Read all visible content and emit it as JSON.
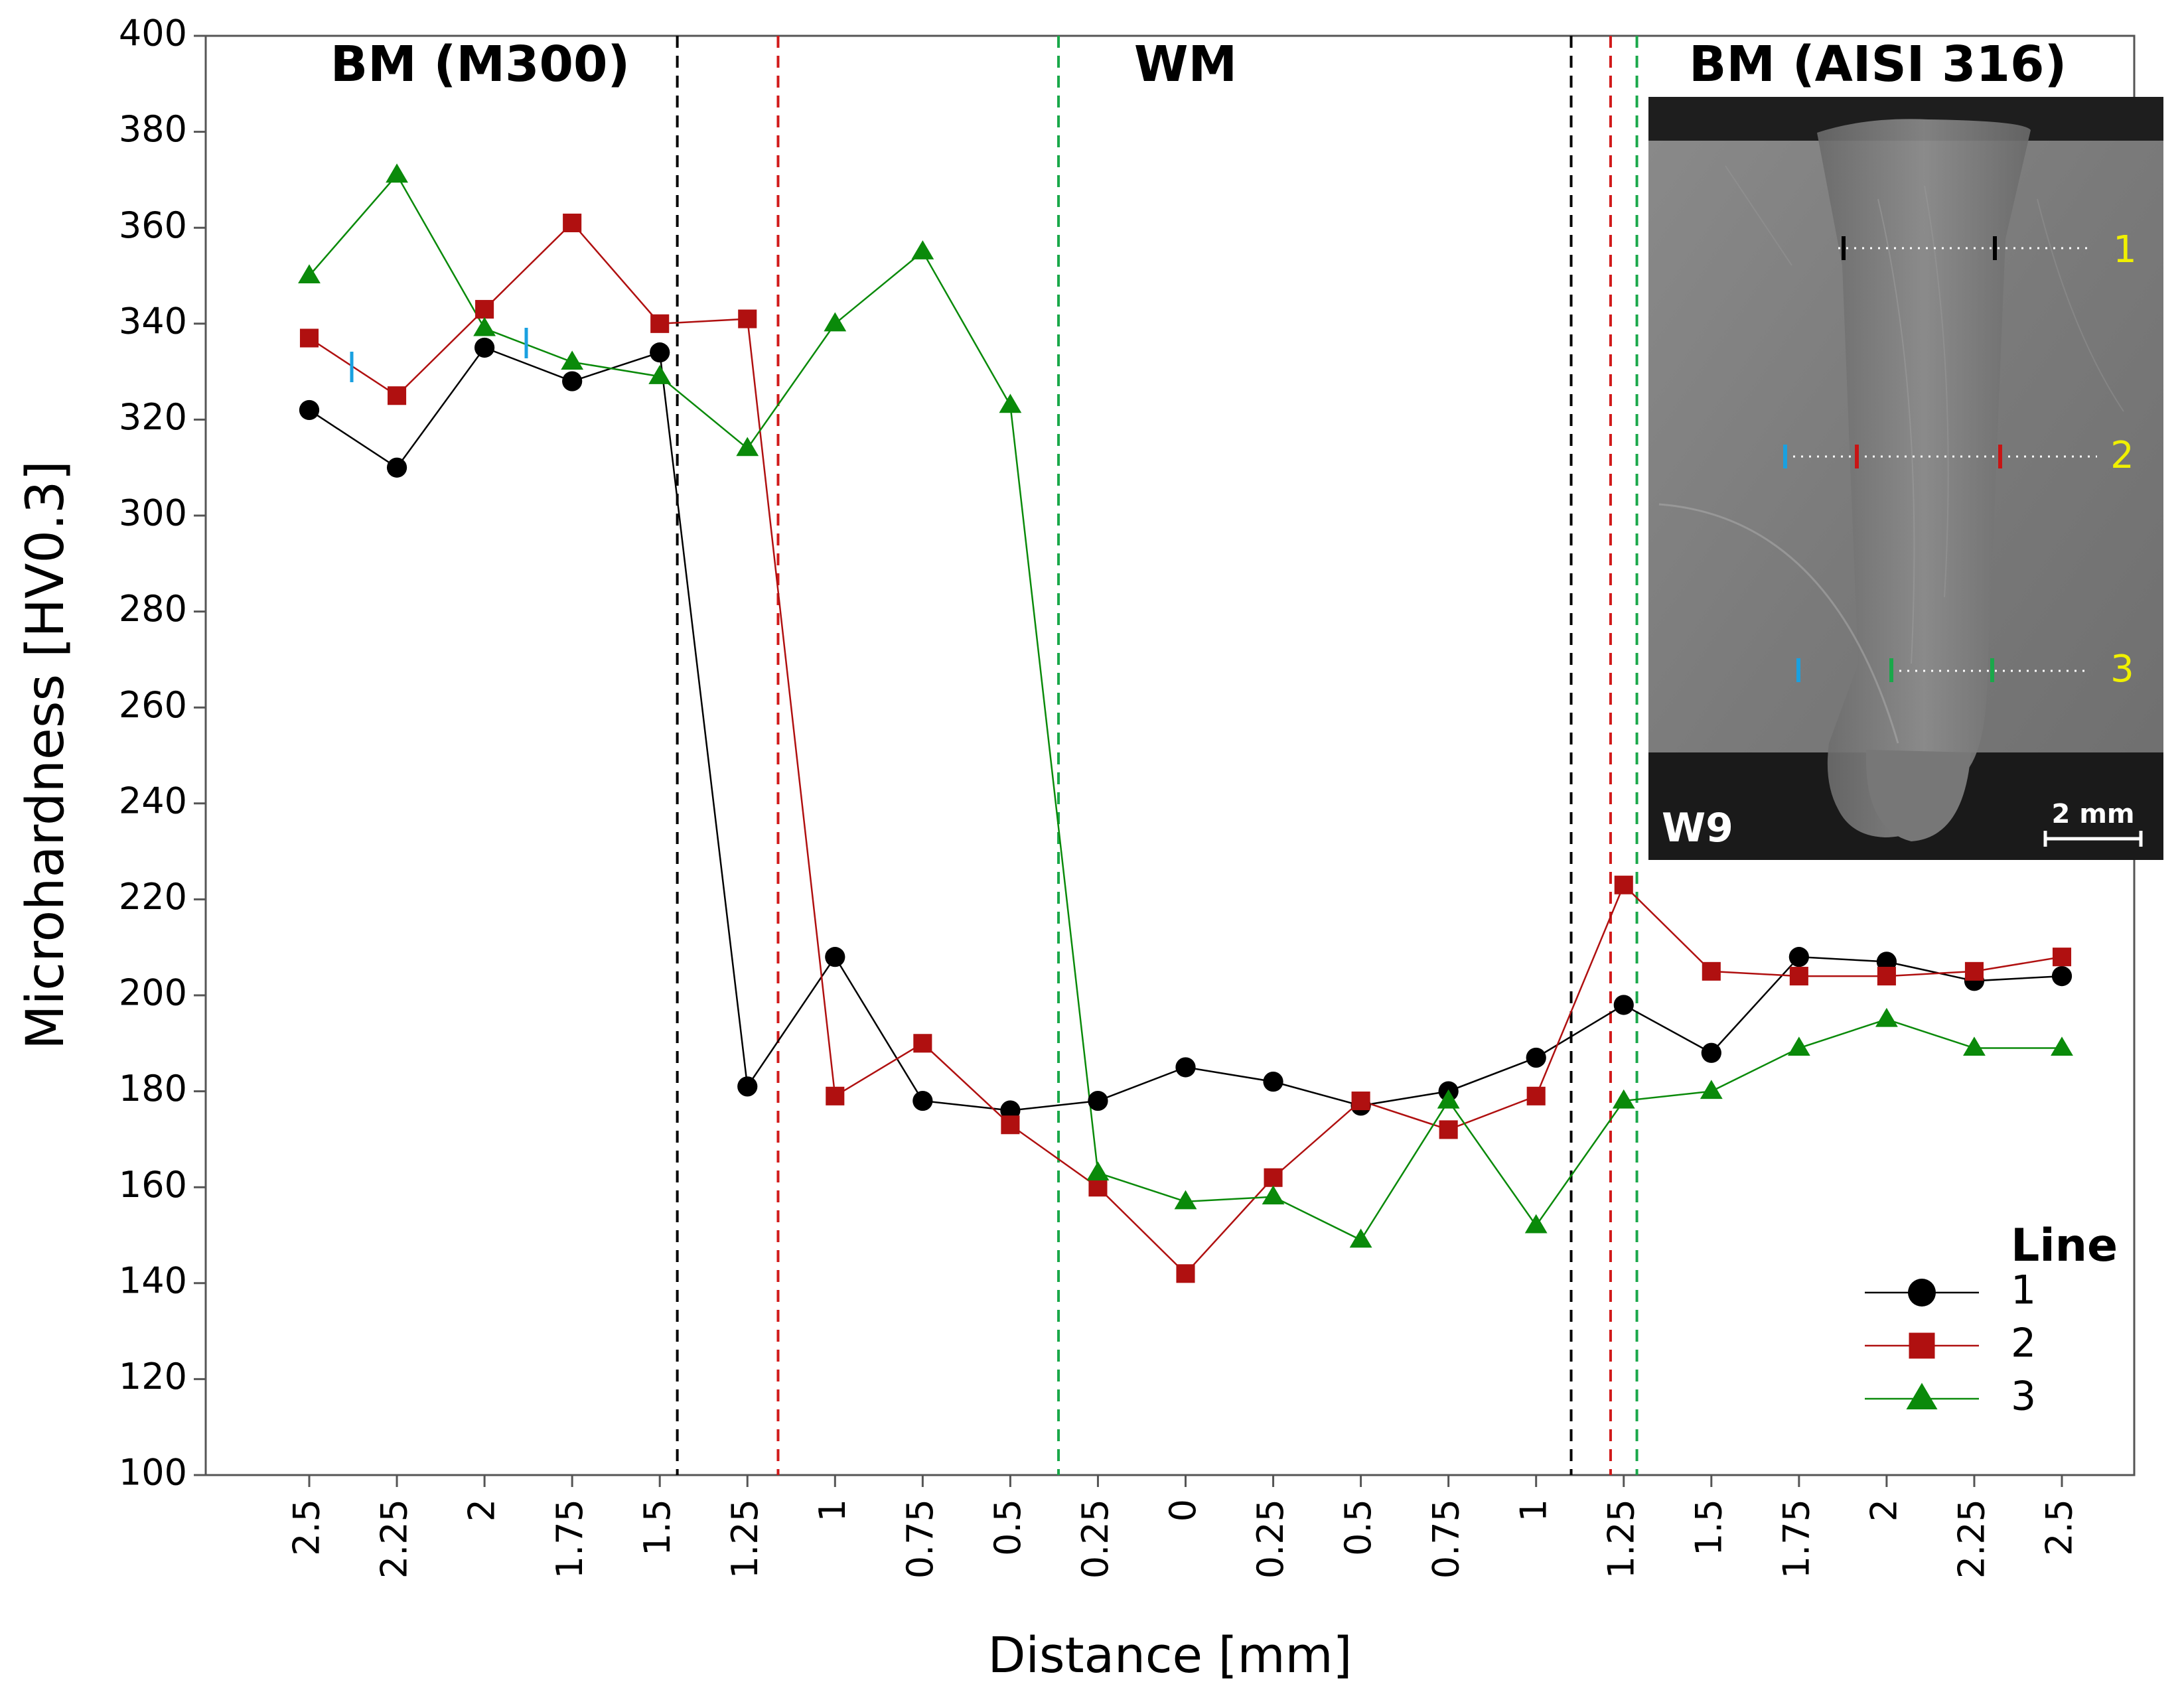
{
  "chart_data": {
    "type": "line",
    "ylabel": "Microhardness [HV0.3]",
    "xlabel": "Distance [mm]",
    "ylim": [
      100,
      400
    ],
    "yticks": [
      100,
      120,
      140,
      160,
      180,
      200,
      220,
      240,
      260,
      280,
      300,
      320,
      340,
      360,
      380,
      400
    ],
    "categories": [
      "2.5",
      "2.25",
      "2",
      "1.75",
      "1.5",
      "1.25",
      "1",
      "0.75",
      "0.5",
      "0.25",
      "0",
      "0.25",
      "0.5",
      "0.75",
      "1",
      "1.25",
      "1.5",
      "1.75",
      "2",
      "2.25",
      "2.5"
    ],
    "grid": false,
    "series": [
      {
        "name": "1",
        "color": "#000000",
        "marker": "circle",
        "values": [
          322,
          310,
          335,
          328,
          334,
          181,
          208,
          178,
          176,
          178,
          185,
          182,
          177,
          180,
          187,
          198,
          188,
          208,
          207,
          203,
          204
        ]
      },
      {
        "name": "2",
        "color": "#b01010",
        "marker": "square",
        "values": [
          337,
          325,
          343,
          361,
          340,
          341,
          179,
          190,
          173,
          160,
          142,
          162,
          178,
          172,
          179,
          223,
          205,
          204,
          204,
          205,
          208
        ]
      },
      {
        "name": "3",
        "color": "#0a8a0a",
        "marker": "triangle",
        "values": [
          350,
          371,
          339,
          332,
          329,
          314,
          340,
          355,
          323,
          163,
          157,
          158,
          149,
          178,
          152,
          178,
          180,
          189,
          195,
          189,
          189
        ]
      }
    ],
    "boundaries": [
      {
        "x_index": 4.2,
        "color": "#000000"
      },
      {
        "x_index": 5.35,
        "color": "#d11a1a"
      },
      {
        "x_index": 8.55,
        "color": "#1aa84a"
      },
      {
        "x_index": 14.4,
        "color": "#000000"
      },
      {
        "x_index": 14.85,
        "color": "#d11a1a"
      },
      {
        "x_index": 15.15,
        "color": "#1aa84a"
      }
    ],
    "regions": [
      {
        "label": "BM (M300)",
        "x_index": 1.95
      },
      {
        "label": "WM",
        "x_index": 10.0
      },
      {
        "label": "BM (AISI 316)",
        "x_index": 17.9
      }
    ],
    "legend": {
      "title": "Line",
      "position": "bottom-right",
      "items": [
        "1",
        "2",
        "3"
      ]
    },
    "inset": {
      "label": "W9",
      "scale_bar": "2 mm",
      "line_labels": [
        "1",
        "2",
        "3"
      ]
    }
  }
}
